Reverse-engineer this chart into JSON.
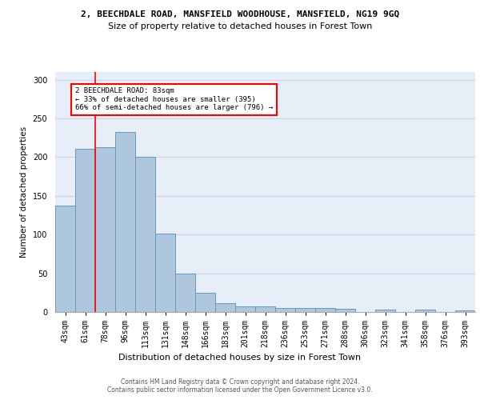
{
  "title_line1": "2, BEECHDALE ROAD, MANSFIELD WOODHOUSE, MANSFIELD, NG19 9GQ",
  "title_line2": "Size of property relative to detached houses in Forest Town",
  "xlabel": "Distribution of detached houses by size in Forest Town",
  "ylabel": "Number of detached properties",
  "footer_line1": "Contains HM Land Registry data © Crown copyright and database right 2024.",
  "footer_line2": "Contains public sector information licensed under the Open Government Licence v3.0.",
  "categories": [
    "43sqm",
    "61sqm",
    "78sqm",
    "96sqm",
    "113sqm",
    "131sqm",
    "148sqm",
    "166sqm",
    "183sqm",
    "201sqm",
    "218sqm",
    "236sqm",
    "253sqm",
    "271sqm",
    "288sqm",
    "306sqm",
    "323sqm",
    "341sqm",
    "358sqm",
    "376sqm",
    "393sqm"
  ],
  "values": [
    137,
    211,
    213,
    233,
    200,
    101,
    50,
    25,
    11,
    7,
    7,
    5,
    5,
    5,
    4,
    0,
    3,
    0,
    3,
    0,
    2
  ],
  "bar_color": "#aec6de",
  "bar_edge_color": "#6699bb",
  "annotation_text": "2 BEECHDALE ROAD: 83sqm\n← 33% of detached houses are smaller (395)\n66% of semi-detached houses are larger (796) →",
  "annotation_box_color": "white",
  "annotation_box_edge_color": "red",
  "vline_x": 1.5,
  "vline_color": "red",
  "ylim": [
    0,
    310
  ],
  "yticks": [
    0,
    50,
    100,
    150,
    200,
    250,
    300
  ],
  "grid_color": "#c8d4e8",
  "bg_color": "#e8eef8",
  "title1_fontsize": 8,
  "title2_fontsize": 8,
  "ylabel_fontsize": 7.5,
  "xlabel_fontsize": 8,
  "tick_fontsize": 7,
  "footer_fontsize": 5.5,
  "annot_fontsize": 6.5
}
